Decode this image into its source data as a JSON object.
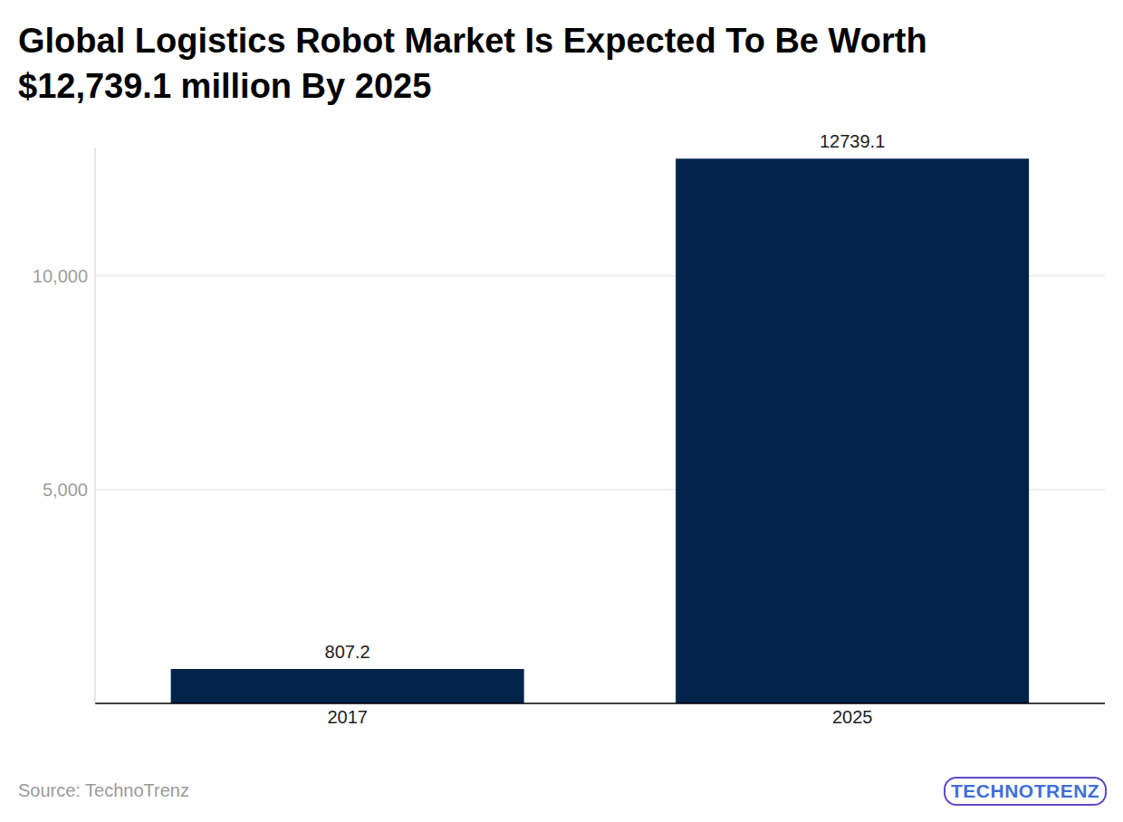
{
  "chart_data": {
    "type": "bar",
    "title": "Global Logistics Robot Market Is Expected To Be Worth $12,739.1 million By 2025",
    "categories": [
      "2017",
      "2025"
    ],
    "values": [
      807.2,
      12739.1
    ],
    "color": "#02234a",
    "ylim": [
      0,
      13000
    ],
    "yticks": [
      {
        "value": 5000,
        "label": "5,000"
      },
      {
        "value": 10000,
        "label": "10,000"
      }
    ],
    "grid": true,
    "data_labels": true,
    "annotations": [
      "Source: TechnoTrenz",
      "TECHNOTRENZ"
    ]
  }
}
